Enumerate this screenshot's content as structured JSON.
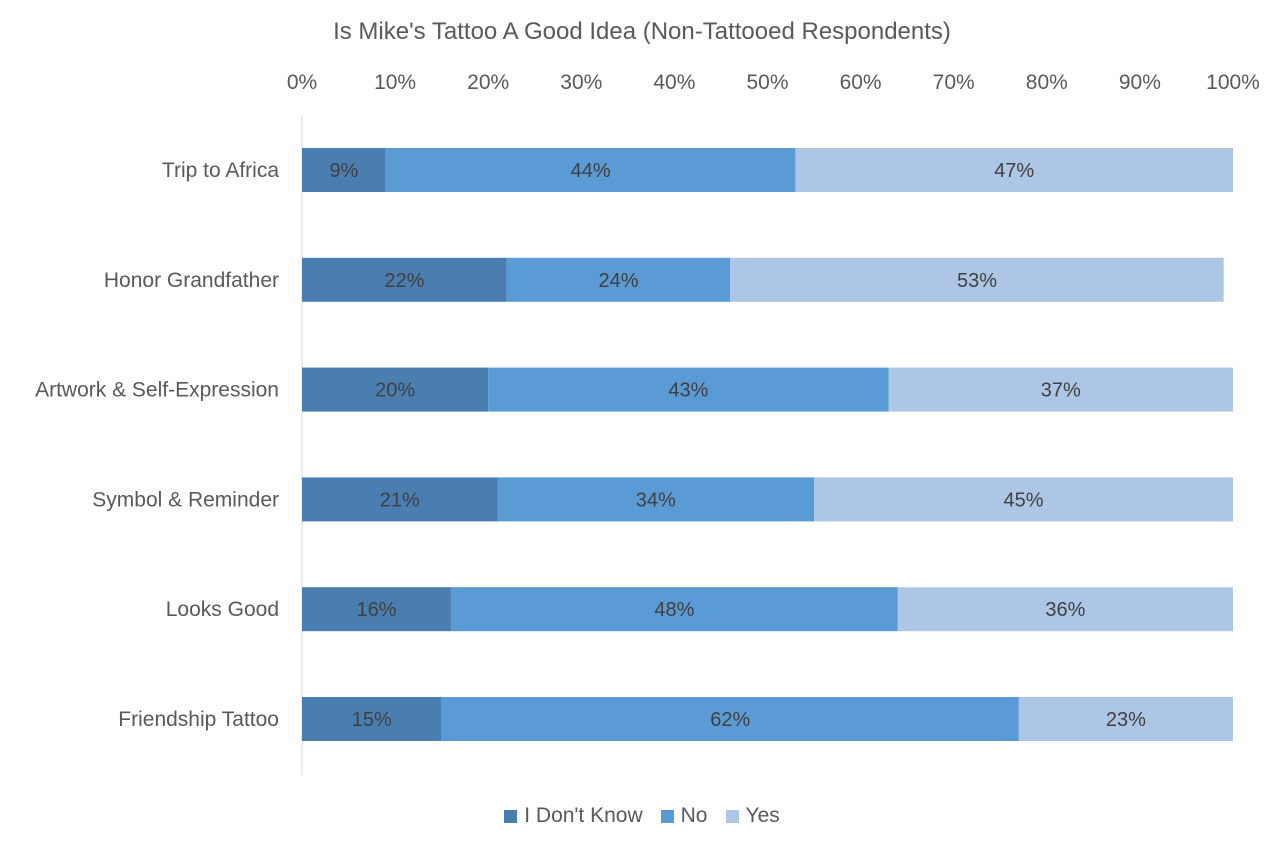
{
  "chart_data": {
    "type": "bar",
    "orientation": "horizontal",
    "stacked": true,
    "percent_stacked": true,
    "title": "Is Mike's Tattoo A Good Idea (Non-Tattooed Respondents)",
    "categories": [
      "Trip to Africa",
      "Honor Grandfather",
      "Artwork & Self-Expression",
      "Symbol & Reminder",
      "Looks Good",
      "Friendship Tattoo"
    ],
    "series": [
      {
        "name": "I Don't Know",
        "color": "#4a7eb0",
        "values": [
          9,
          22,
          20,
          21,
          16,
          15
        ],
        "labels": [
          "9%",
          "22%",
          "20%",
          "21%",
          "16%",
          "15%"
        ]
      },
      {
        "name": "No",
        "color": "#5b9bd5",
        "values": [
          44,
          24,
          43,
          34,
          48,
          62
        ],
        "labels": [
          "44%",
          "24%",
          "43%",
          "34%",
          "48%",
          "62%"
        ]
      },
      {
        "name": "Yes",
        "color": "#adc6e6",
        "values": [
          47,
          53,
          37,
          45,
          36,
          23
        ],
        "labels": [
          "47%",
          "53%",
          "37%",
          "45%",
          "36%",
          "23%"
        ]
      }
    ],
    "x_axis": {
      "position": "top",
      "range": [
        0,
        100
      ],
      "ticks": [
        0,
        10,
        20,
        30,
        40,
        50,
        60,
        70,
        80,
        90,
        100
      ],
      "tick_labels": [
        "0%",
        "10%",
        "20%",
        "30%",
        "40%",
        "50%",
        "60%",
        "70%",
        "80%",
        "90%",
        "100%"
      ]
    },
    "grid": false,
    "legend_position": "bottom"
  }
}
